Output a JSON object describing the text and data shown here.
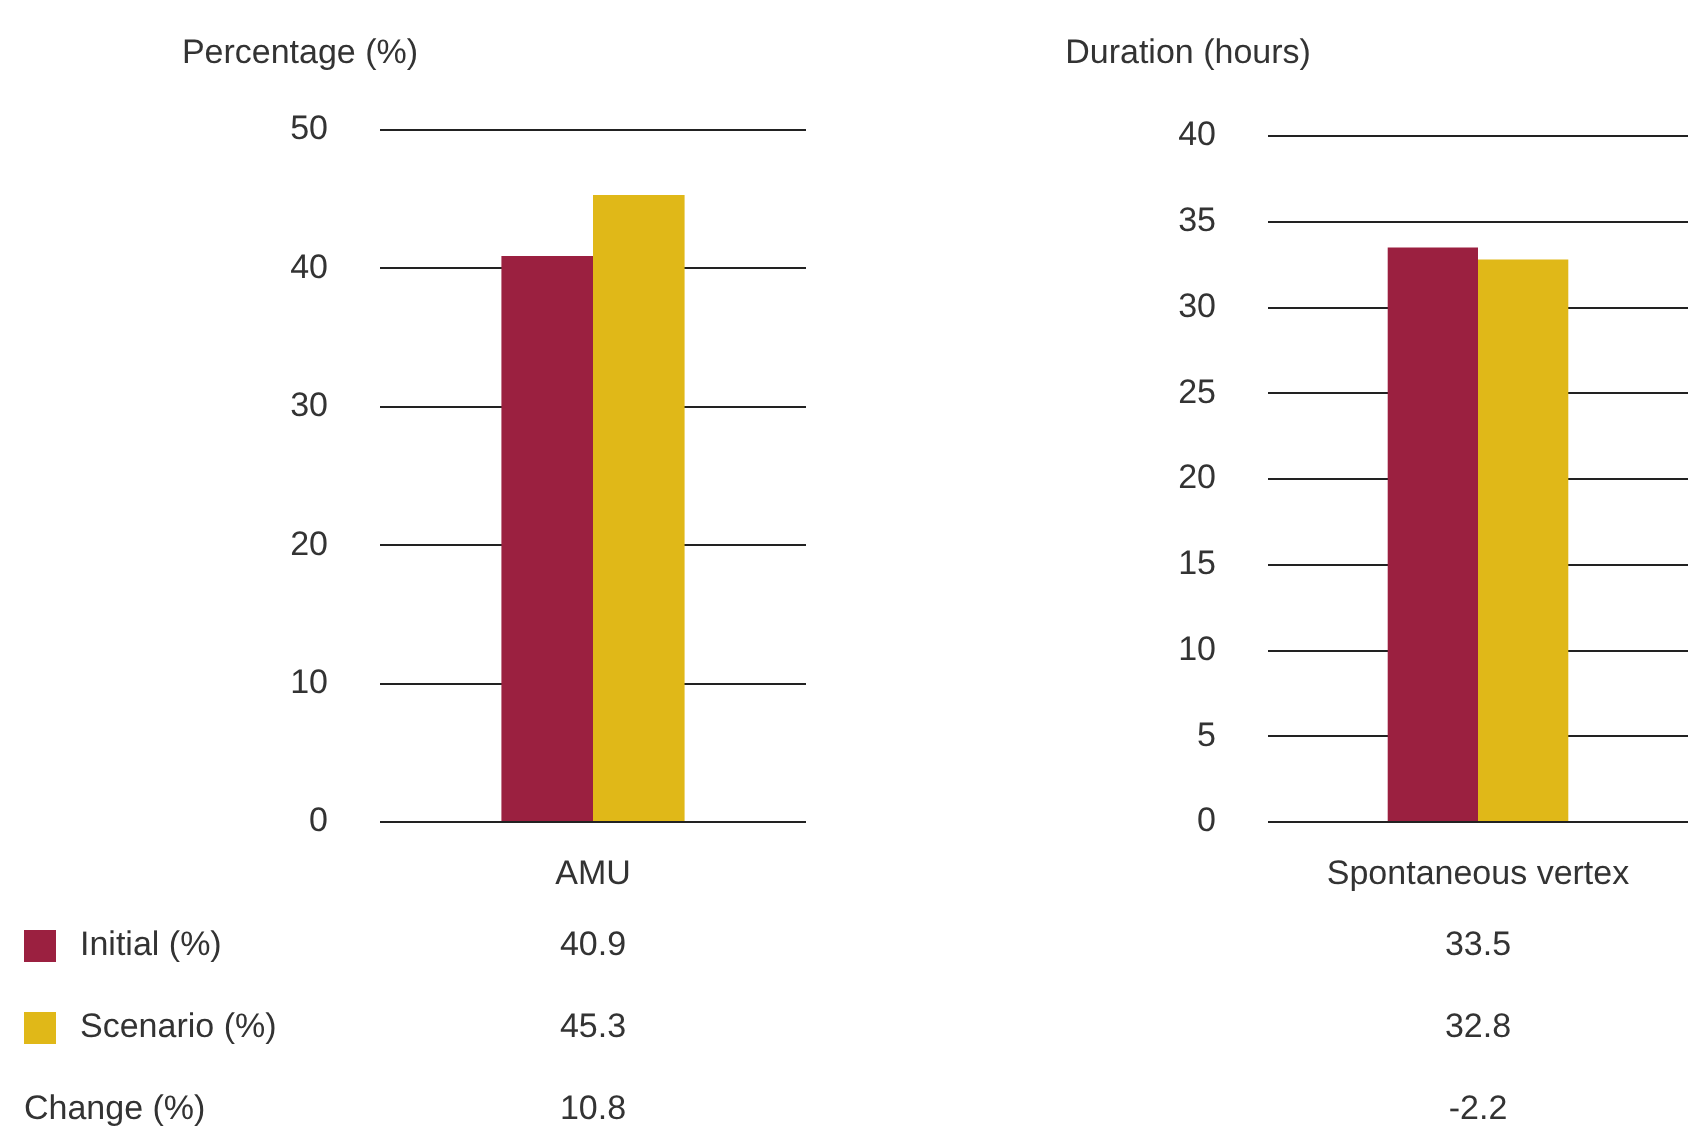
{
  "chart_data": [
    {
      "type": "bar",
      "ylabel": "Percentage (%)",
      "categories": [
        "AMU"
      ],
      "series": [
        {
          "name": "Initial (%)",
          "color": "#9b2040",
          "values": [
            40.9
          ]
        },
        {
          "name": "Scenario (%)",
          "color": "#e0b818",
          "values": [
            45.3
          ]
        }
      ],
      "ylim": [
        0,
        50
      ],
      "yticks": [
        0,
        10,
        20,
        30,
        40,
        50
      ],
      "grid": "y",
      "legend": "bottom",
      "annotations": [
        "40.9",
        "45.3",
        "Change (%)",
        "10.8"
      ]
    },
    {
      "type": "bar",
      "ylabel": "Duration (hours)",
      "categories": [
        "Spontaneous vertex"
      ],
      "series": [
        {
          "color": "#9b2040",
          "values": [
            33.5
          ]
        },
        {
          "color": "#e0b818",
          "values": [
            32.8
          ]
        }
      ],
      "ylim": [
        0,
        40
      ],
      "yticks": [
        0,
        5,
        10,
        15,
        20,
        25,
        30,
        35,
        40
      ],
      "grid": "y",
      "annotations": [
        "33.5",
        "32.8",
        "-2.2"
      ]
    }
  ]
}
